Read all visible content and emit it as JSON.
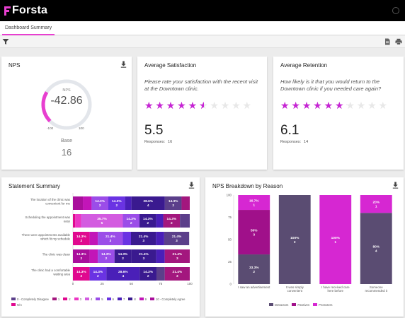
{
  "app": {
    "brand": "Forsta"
  },
  "tabs": [
    {
      "label": "Dashboard Summary"
    }
  ],
  "nps": {
    "title": "NPS",
    "label": "NPS",
    "value": -42.86,
    "value_text": "-42.86",
    "min": "-100",
    "max": "100",
    "base_label": "Base",
    "base_value": "16",
    "colors": {
      "track": "#e3e6eb",
      "fill": "#e83fd0"
    }
  },
  "avg_satisfaction": {
    "title": "Average Satisfaction",
    "question": "Please rate your satisfaction with the recent visit at the Downtown clinic.",
    "score": 5.5,
    "score_text": "5.5",
    "max_stars": 10,
    "responses_label": "Responses:",
    "responses_value": "16"
  },
  "avg_retention": {
    "title": "Average Retention",
    "question": "How likely is it that you would return to the Downtown clinic if you needed care again?",
    "score": 6.1,
    "score_text": "6.1",
    "max_stars": 10,
    "responses_label": "Responses:",
    "responses_value": "14"
  },
  "statement_summary": {
    "title": "Statement Summary",
    "x_ticks": [
      "0",
      "25",
      "50",
      "75",
      "100"
    ],
    "rows": [
      {
        "label": [
          "The location of the clinic was",
          "convenient for me"
        ],
        "segs": [
          {
            "c": 3,
            "w": 8.5
          },
          {
            "c": 2,
            "w": 7.5
          },
          {
            "c": 5,
            "w": 14.3,
            "p": "14.3%",
            "n": "2"
          },
          {
            "c": 6,
            "w": 14.3,
            "p": "14.3%",
            "n": "2"
          },
          {
            "c": 7,
            "w": 5.5
          },
          {
            "c": 8,
            "w": 28.6,
            "p": "28.6%",
            "n": "4"
          },
          {
            "c": 9,
            "w": 14.3,
            "p": "14.3%",
            "n": "2"
          },
          {
            "c": 10,
            "w": 7
          }
        ]
      },
      {
        "label": [
          "Scheduling the appointment was",
          "easy"
        ],
        "segs": [
          {
            "c": 0,
            "w": 2
          },
          {
            "c": 1,
            "w": 5
          },
          {
            "c": 4,
            "w": 35.7,
            "p": "35.7%",
            "n": "5"
          },
          {
            "c": 5,
            "w": 14.3,
            "p": "14.3%",
            "n": "2"
          },
          {
            "c": 8,
            "w": 14.3,
            "p": "14.3%",
            "n": "2"
          },
          {
            "c": 7,
            "w": 6
          },
          {
            "c": 10,
            "w": 14.3,
            "p": "14.3%",
            "n": "2"
          },
          {
            "c": 9,
            "w": 8.4
          }
        ]
      },
      {
        "label": [
          "There were appointments available",
          "which fit my schedule"
        ],
        "segs": [
          {
            "c": 0,
            "w": 14.3,
            "p": "14.3%",
            "n": "2"
          },
          {
            "c": 2,
            "w": 7
          },
          {
            "c": 5,
            "w": 21.4,
            "p": "21.4%",
            "n": "3"
          },
          {
            "c": 6,
            "w": 7
          },
          {
            "c": 8,
            "w": 21.4,
            "p": "21.4%",
            "n": "3"
          },
          {
            "c": 7,
            "w": 7
          },
          {
            "c": 9,
            "w": 21.4,
            "p": "21.4%",
            "n": "3"
          }
        ]
      },
      {
        "label": [
          "The clinic was clean"
        ],
        "segs": [
          {
            "c": 3,
            "w": 14.3,
            "p": "14.3%",
            "n": "2"
          },
          {
            "c": 2,
            "w": 7
          },
          {
            "c": 5,
            "w": 14.3,
            "p": "14.3%",
            "n": "2"
          },
          {
            "c": 8,
            "w": 14.3,
            "p": "14.3%",
            "n": "2"
          },
          {
            "c": 8,
            "w": 21.4,
            "p": "21.4%",
            "n": "3"
          },
          {
            "c": 7,
            "w": 7.3
          },
          {
            "c": 10,
            "w": 21.4,
            "p": "21.4%",
            "n": "3"
          }
        ]
      },
      {
        "label": [
          "The clinic had a comfortable",
          "waiting area"
        ],
        "segs": [
          {
            "c": 0,
            "w": 14.3,
            "p": "14.3%",
            "n": "2"
          },
          {
            "c": 6,
            "w": 14.3,
            "p": "14.3%",
            "n": "2"
          },
          {
            "c": 7,
            "w": 28.6,
            "p": "28.6%",
            "n": "4"
          },
          {
            "c": 8,
            "w": 14.3,
            "p": "14.3%",
            "n": "2"
          },
          {
            "c": 9,
            "w": 7.1
          },
          {
            "c": 10,
            "w": 21.4,
            "p": "21.4%",
            "n": "3"
          }
        ]
      }
    ],
    "palette": [
      "#e0098f",
      "#ec36c4",
      "#c215b8",
      "#a90f9c",
      "#d35be0",
      "#9b4de8",
      "#6a33e3",
      "#4a1fb8",
      "#3a1a8f",
      "#5b3f8a",
      "#a3177e"
    ],
    "legend": [
      {
        "label": "0 - Completely Disagree",
        "c": "#5b3f8a"
      },
      {
        "label": "1",
        "c": "#a3177e"
      },
      {
        "label": "2",
        "c": "#e0098f"
      },
      {
        "label": "3",
        "c": "#ec36c4"
      },
      {
        "label": "4",
        "c": "#d35be0"
      },
      {
        "label": "5",
        "c": "#9b4de8"
      },
      {
        "label": "6",
        "c": "#6a33e3"
      },
      {
        "label": "7",
        "c": "#4a1fb8"
      },
      {
        "label": "8",
        "c": "#3a1a8f"
      },
      {
        "label": "9",
        "c": "#c215b8"
      },
      {
        "label": "10 - Completely Agree",
        "c": "#a90f9c"
      },
      {
        "label": "N/A",
        "c": "#e0098f"
      }
    ]
  },
  "chart_data": {
    "type": "bar",
    "stacked": true,
    "title": "NPS Breakdown by Reason",
    "categories": [
      [
        "I saw an advertisement"
      ],
      [
        "It was simply",
        "convenient"
      ],
      [
        "I have received care",
        "here before"
      ],
      [
        "Someone",
        "recommended it"
      ]
    ],
    "y_ticks": [
      "0",
      "25",
      "50",
      "75",
      "100"
    ],
    "ylim": [
      0,
      100
    ],
    "series": [
      {
        "name": "Detractors",
        "color": "#5a4c72",
        "values": [
          33.3,
          100,
          0,
          80
        ],
        "counts": [
          "2",
          "2",
          "",
          "4"
        ],
        "labels": [
          "33.3%",
          "100%",
          "",
          "80%"
        ]
      },
      {
        "name": "Passives",
        "color": "#a0108a",
        "values": [
          50,
          0,
          0,
          0
        ],
        "counts": [
          "3",
          "",
          "",
          ""
        ],
        "labels": [
          "50%",
          "",
          "",
          ""
        ]
      },
      {
        "name": "Promoters",
        "color": "#d627d2",
        "values": [
          16.7,
          0,
          100,
          20
        ],
        "counts": [
          "1",
          "",
          "1",
          "1"
        ],
        "labels": [
          "16.7%",
          "",
          "100%",
          "20%"
        ]
      }
    ],
    "special_labels": {
      "col1_passives_color_override": "#5a4c72"
    }
  }
}
